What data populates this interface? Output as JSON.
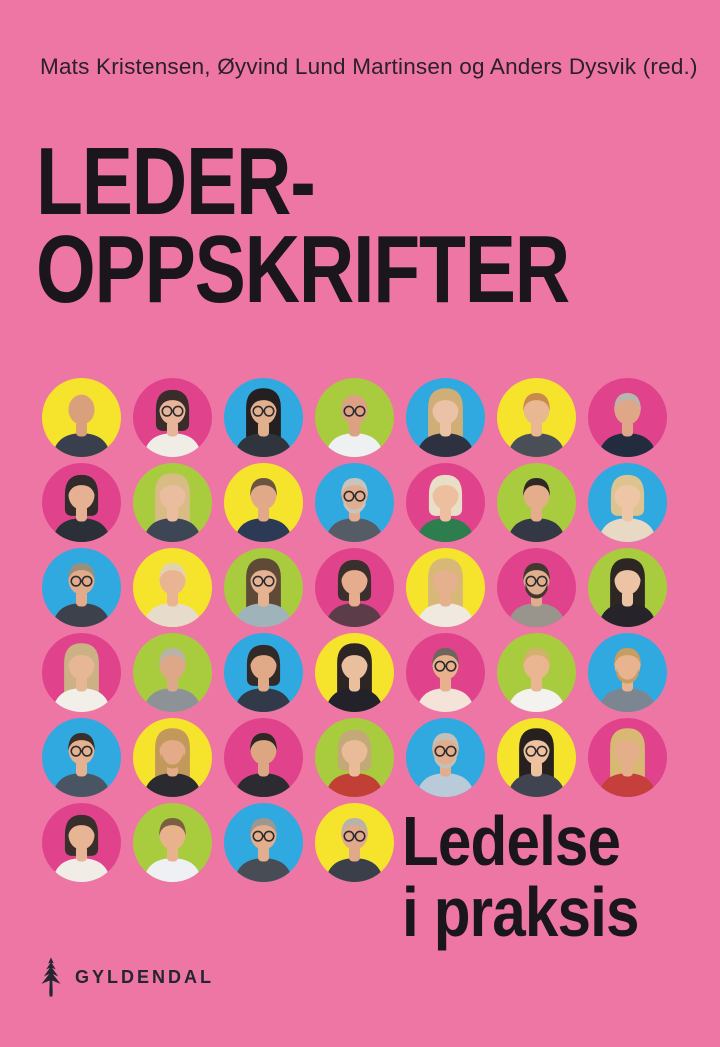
{
  "cover": {
    "authors": "Mats Kristensen, Øyvind Lund Martinsen og Anders Dysvik (red.)",
    "title_line1": "LEDER-",
    "title_line2": "OPPSKRIFTER",
    "subtitle_line1": "Ledelse",
    "subtitle_line2": "i praksis",
    "publisher": "GYLDENDAL"
  },
  "colors": {
    "background": "#ee76a5",
    "title_text": "#1b161c",
    "author_text": "#2a1f2b",
    "publisher_text": "#252531",
    "circle_yellow": "#f6e42c",
    "circle_magenta": "#e0438c",
    "circle_cyan": "#2fa9e0",
    "circle_green": "#a8cc3e"
  },
  "portrait_grid": {
    "rows": 6,
    "columns": 7,
    "last_row_count": 4,
    "people": [
      {
        "id": "r1c1",
        "row": 1,
        "col": 1,
        "bg": "yellow",
        "style": "bald",
        "glasses": false,
        "beard": false,
        "hair": "#b08a68",
        "skin": "#d9a07c",
        "top": "#3a3f4d"
      },
      {
        "id": "r1c2",
        "row": 1,
        "col": 2,
        "bg": "magenta",
        "style": "bob",
        "glasses": true,
        "beard": false,
        "hair": "#3a2c2a",
        "skin": "#e8b59a",
        "top": "#f0ece6"
      },
      {
        "id": "r1c3",
        "row": 1,
        "col": 3,
        "bg": "cyan",
        "style": "long",
        "glasses": true,
        "beard": false,
        "hair": "#241f20",
        "skin": "#e3b08e",
        "top": "#30343c"
      },
      {
        "id": "r1c4",
        "row": 1,
        "col": 4,
        "bg": "green",
        "style": "bald",
        "glasses": true,
        "beard": false,
        "hair": "#c2977a",
        "skin": "#dca183",
        "top": "#eef0f2"
      },
      {
        "id": "r1c5",
        "row": 1,
        "col": 5,
        "bg": "cyan",
        "style": "long",
        "glasses": false,
        "beard": false,
        "hair": "#cfae77",
        "skin": "#ecc2a6",
        "top": "#2e3240"
      },
      {
        "id": "r1c6",
        "row": 1,
        "col": 6,
        "bg": "yellow",
        "style": "short",
        "glasses": false,
        "beard": false,
        "hair": "#c98a4e",
        "skin": "#eab793",
        "top": "#4a4e57"
      },
      {
        "id": "r1c7",
        "row": 1,
        "col": 7,
        "bg": "magenta",
        "style": "short",
        "glasses": false,
        "beard": false,
        "hair": "#b9b4ad",
        "skin": "#dfa687",
        "top": "#222c3e"
      },
      {
        "id": "r2c1",
        "row": 2,
        "col": 1,
        "bg": "magenta",
        "style": "bob",
        "glasses": false,
        "beard": false,
        "hair": "#332a2b",
        "skin": "#e6b193",
        "top": "#2b2f38"
      },
      {
        "id": "r2c2",
        "row": 2,
        "col": 2,
        "bg": "green",
        "style": "long",
        "glasses": false,
        "beard": false,
        "hair": "#d9bc85",
        "skin": "#e9bd9e",
        "top": "#3c4654"
      },
      {
        "id": "r2c3",
        "row": 2,
        "col": 3,
        "bg": "yellow",
        "style": "short",
        "glasses": false,
        "beard": false,
        "hair": "#6b5540",
        "skin": "#e2a988",
        "top": "#2c3a56"
      },
      {
        "id": "r2c4",
        "row": 2,
        "col": 4,
        "bg": "cyan",
        "style": "short",
        "glasses": true,
        "beard": true,
        "hair": "#c8c4bd",
        "skin": "#e0ad90",
        "top": "#555c66"
      },
      {
        "id": "r2c5",
        "row": 2,
        "col": 5,
        "bg": "magenta",
        "style": "bob",
        "glasses": false,
        "beard": false,
        "hair": "#e9dec6",
        "skin": "#edbf9f",
        "top": "#2e7d4f"
      },
      {
        "id": "r2c6",
        "row": 2,
        "col": 6,
        "bg": "green",
        "style": "short",
        "glasses": false,
        "beard": false,
        "hair": "#2f2824",
        "skin": "#e4ae8c",
        "top": "#333844"
      },
      {
        "id": "r2c7",
        "row": 2,
        "col": 7,
        "bg": "cyan",
        "style": "bob",
        "glasses": false,
        "beard": false,
        "hair": "#ddc390",
        "skin": "#efc6a5",
        "top": "#e8d9c4"
      },
      {
        "id": "r3c1",
        "row": 3,
        "col": 1,
        "bg": "cyan",
        "style": "short",
        "glasses": true,
        "beard": false,
        "hair": "#9b8f7c",
        "skin": "#e2ac8c",
        "top": "#3c414b"
      },
      {
        "id": "r3c2",
        "row": 3,
        "col": 2,
        "bg": "yellow",
        "style": "short",
        "glasses": false,
        "beard": false,
        "hair": "#e3d3ad",
        "skin": "#e9b492",
        "top": "#e7dccb"
      },
      {
        "id": "r3c3",
        "row": 3,
        "col": 3,
        "bg": "green",
        "style": "long",
        "glasses": true,
        "beard": false,
        "hair": "#5f4a38",
        "skin": "#e6b392",
        "top": "#9fb3bb"
      },
      {
        "id": "r3c4",
        "row": 3,
        "col": 4,
        "bg": "magenta",
        "style": "bob",
        "glasses": false,
        "beard": false,
        "hair": "#3b2f2e",
        "skin": "#e5ad8d",
        "top": "#5c3c48"
      },
      {
        "id": "r3c5",
        "row": 3,
        "col": 5,
        "bg": "yellow",
        "style": "long",
        "glasses": false,
        "beard": false,
        "hair": "#d7b877",
        "skin": "#e5b08d",
        "top": "#f0e9df"
      },
      {
        "id": "r3c6",
        "row": 3,
        "col": 6,
        "bg": "magenta",
        "style": "short",
        "glasses": true,
        "beard": true,
        "hair": "#43382f",
        "skin": "#dfae8d",
        "top": "#9a958c"
      },
      {
        "id": "r3c7",
        "row": 3,
        "col": 7,
        "bg": "green",
        "style": "long",
        "glasses": false,
        "beard": false,
        "hair": "#2e2622",
        "skin": "#ecc3a4",
        "top": "#26242a"
      },
      {
        "id": "r4c1",
        "row": 4,
        "col": 1,
        "bg": "magenta",
        "style": "long",
        "glasses": false,
        "beard": false,
        "hair": "#cbb184",
        "skin": "#e7b795",
        "top": "#f2efe9"
      },
      {
        "id": "r4c2",
        "row": 4,
        "col": 2,
        "bg": "green",
        "style": "short",
        "glasses": false,
        "beard": false,
        "hair": "#b8b3a8",
        "skin": "#dda887",
        "top": "#8d9297"
      },
      {
        "id": "r4c3",
        "row": 4,
        "col": 3,
        "bg": "cyan",
        "style": "bob",
        "glasses": false,
        "beard": false,
        "hair": "#312a29",
        "skin": "#e0a987",
        "top": "#323a49"
      },
      {
        "id": "r4c4",
        "row": 4,
        "col": 4,
        "bg": "yellow",
        "style": "long",
        "glasses": false,
        "beard": false,
        "hair": "#2d2523",
        "skin": "#eabf9e",
        "top": "#23222a"
      },
      {
        "id": "r4c5",
        "row": 4,
        "col": 5,
        "bg": "magenta",
        "style": "short",
        "glasses": true,
        "beard": false,
        "hair": "#6e655c",
        "skin": "#e8b18d",
        "top": "#f3e3d8"
      },
      {
        "id": "r4c6",
        "row": 4,
        "col": 6,
        "bg": "green",
        "style": "short",
        "glasses": false,
        "beard": false,
        "hair": "#d3b06e",
        "skin": "#eab691",
        "top": "#f4f2ee"
      },
      {
        "id": "r4c7",
        "row": 4,
        "col": 7,
        "bg": "cyan",
        "style": "short",
        "glasses": false,
        "beard": true,
        "hair": "#c99d5f",
        "skin": "#e7b48f",
        "top": "#7c8691"
      },
      {
        "id": "r5c1",
        "row": 5,
        "col": 1,
        "bg": "cyan",
        "style": "short",
        "glasses": true,
        "beard": false,
        "hair": "#39302b",
        "skin": "#e5b291",
        "top": "#4a5563"
      },
      {
        "id": "r5c2",
        "row": 5,
        "col": 2,
        "bg": "yellow",
        "style": "long",
        "glasses": false,
        "beard": true,
        "hair": "#c2995a",
        "skin": "#e3ab87",
        "top": "#2a2a30"
      },
      {
        "id": "r5c3",
        "row": 5,
        "col": 3,
        "bg": "magenta",
        "style": "short",
        "glasses": false,
        "beard": false,
        "hair": "#2e2723",
        "skin": "#dda683",
        "top": "#2c2b31"
      },
      {
        "id": "r5c4",
        "row": 5,
        "col": 4,
        "bg": "green",
        "style": "bob",
        "glasses": false,
        "beard": false,
        "hair": "#c3a878",
        "skin": "#e9bb99",
        "top": "#c23f36"
      },
      {
        "id": "r5c5",
        "row": 5,
        "col": 5,
        "bg": "cyan",
        "style": "short",
        "glasses": true,
        "beard": true,
        "hair": "#c4bfb7",
        "skin": "#e2ad8c",
        "top": "#b9cbd9"
      },
      {
        "id": "r5c6",
        "row": 5,
        "col": 6,
        "bg": "yellow",
        "style": "long",
        "glasses": true,
        "beard": false,
        "hair": "#26211f",
        "skin": "#eec29e",
        "top": "#3f4450"
      },
      {
        "id": "r5c7",
        "row": 5,
        "col": 7,
        "bg": "magenta",
        "style": "long",
        "glasses": false,
        "beard": false,
        "hair": "#d8b873",
        "skin": "#e4ae8a",
        "top": "#c5403c"
      },
      {
        "id": "r6c1",
        "row": 6,
        "col": 1,
        "bg": "magenta",
        "style": "bob",
        "glasses": false,
        "beard": false,
        "hair": "#3a2e2c",
        "skin": "#e7b494",
        "top": "#f1ede6"
      },
      {
        "id": "r6c2",
        "row": 6,
        "col": 2,
        "bg": "green",
        "style": "short",
        "glasses": false,
        "beard": false,
        "hair": "#7a5f41",
        "skin": "#e8b28d",
        "top": "#eef0f3"
      },
      {
        "id": "r6c3",
        "row": 6,
        "col": 3,
        "bg": "cyan",
        "style": "short",
        "glasses": true,
        "beard": false,
        "hair": "#9d9790",
        "skin": "#e3ae8d",
        "top": "#474c55"
      },
      {
        "id": "r6c4",
        "row": 6,
        "col": 4,
        "bg": "yellow",
        "style": "short",
        "glasses": true,
        "beard": false,
        "hair": "#b7b2aa",
        "skin": "#e0a98a",
        "top": "#3a3f4a"
      }
    ]
  }
}
